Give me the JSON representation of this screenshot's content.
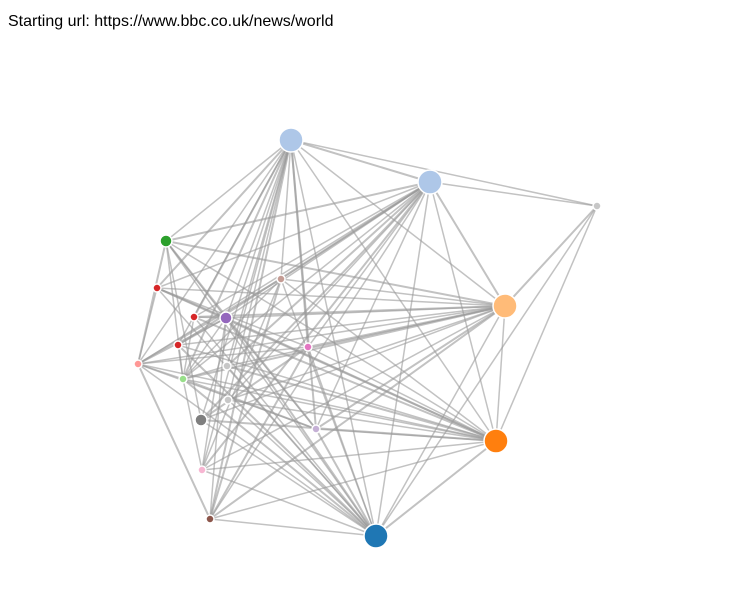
{
  "header": {
    "label": "Starting url:",
    "url": "https://www.bbc.co.uk/news/world"
  },
  "graph": {
    "link_color": "#999999",
    "node_stroke": "#ffffff",
    "nodes": [
      {
        "id": "n0",
        "color": "#aec7e8",
        "size": "large"
      },
      {
        "id": "n1",
        "color": "#aec7e8",
        "size": "large"
      },
      {
        "id": "n2",
        "color": "#c7c7c7",
        "size": "tiny"
      },
      {
        "id": "n3",
        "color": "#2ca02c",
        "size": "small"
      },
      {
        "id": "n4",
        "color": "#d62728",
        "size": "tiny"
      },
      {
        "id": "n5",
        "color": "#c49c94",
        "size": "tiny"
      },
      {
        "id": "n6",
        "color": "#ffbb78",
        "size": "large"
      },
      {
        "id": "n7",
        "color": "#d62728",
        "size": "tiny"
      },
      {
        "id": "n8",
        "color": "#9467bd",
        "size": "small"
      },
      {
        "id": "n9",
        "color": "#d62728",
        "size": "tiny"
      },
      {
        "id": "n10",
        "color": "#e377c2",
        "size": "tiny"
      },
      {
        "id": "n11",
        "color": "#ff9896",
        "size": "tiny"
      },
      {
        "id": "n12",
        "color": "#c7c7c7",
        "size": "tiny"
      },
      {
        "id": "n13",
        "color": "#98df8a",
        "size": "tiny"
      },
      {
        "id": "n14",
        "color": "#c7c7c7",
        "size": "tiny"
      },
      {
        "id": "n15",
        "color": "#7f7f7f",
        "size": "small"
      },
      {
        "id": "n16",
        "color": "#c5b0d5",
        "size": "tiny"
      },
      {
        "id": "n17",
        "color": "#ff7f0e",
        "size": "large"
      },
      {
        "id": "n18",
        "color": "#f7b6d2",
        "size": "tiny"
      },
      {
        "id": "n19",
        "color": "#8c564b",
        "size": "tiny"
      },
      {
        "id": "n20",
        "color": "#1f77b4",
        "size": "large"
      }
    ],
    "links": [
      [
        "n0",
        "n1"
      ],
      [
        "n0",
        "n2"
      ],
      [
        "n0",
        "n3"
      ],
      [
        "n0",
        "n4"
      ],
      [
        "n0",
        "n5"
      ],
      [
        "n0",
        "n6"
      ],
      [
        "n0",
        "n7"
      ],
      [
        "n0",
        "n8"
      ],
      [
        "n0",
        "n9"
      ],
      [
        "n0",
        "n10"
      ],
      [
        "n0",
        "n11"
      ],
      [
        "n0",
        "n12"
      ],
      [
        "n0",
        "n13"
      ],
      [
        "n0",
        "n14"
      ],
      [
        "n0",
        "n15"
      ],
      [
        "n0",
        "n16"
      ],
      [
        "n0",
        "n17"
      ],
      [
        "n0",
        "n18"
      ],
      [
        "n0",
        "n19"
      ],
      [
        "n0",
        "n20"
      ],
      [
        "n1",
        "n2"
      ],
      [
        "n1",
        "n3"
      ],
      [
        "n1",
        "n4"
      ],
      [
        "n1",
        "n5"
      ],
      [
        "n1",
        "n6"
      ],
      [
        "n1",
        "n7"
      ],
      [
        "n1",
        "n8"
      ],
      [
        "n1",
        "n9"
      ],
      [
        "n1",
        "n10"
      ],
      [
        "n1",
        "n11"
      ],
      [
        "n1",
        "n12"
      ],
      [
        "n1",
        "n13"
      ],
      [
        "n1",
        "n14"
      ],
      [
        "n1",
        "n15"
      ],
      [
        "n1",
        "n16"
      ],
      [
        "n1",
        "n17"
      ],
      [
        "n1",
        "n18"
      ],
      [
        "n1",
        "n19"
      ],
      [
        "n1",
        "n20"
      ],
      [
        "n2",
        "n6"
      ],
      [
        "n2",
        "n17"
      ],
      [
        "n2",
        "n20"
      ],
      [
        "n3",
        "n6"
      ],
      [
        "n3",
        "n8"
      ],
      [
        "n3",
        "n13"
      ],
      [
        "n3",
        "n16"
      ],
      [
        "n3",
        "n17"
      ],
      [
        "n3",
        "n20"
      ],
      [
        "n3",
        "n11"
      ],
      [
        "n3",
        "n15"
      ],
      [
        "n4",
        "n6"
      ],
      [
        "n4",
        "n17"
      ],
      [
        "n4",
        "n20"
      ],
      [
        "n4",
        "n11"
      ],
      [
        "n4",
        "n8"
      ],
      [
        "n4",
        "n10"
      ],
      [
        "n5",
        "n6"
      ],
      [
        "n5",
        "n11"
      ],
      [
        "n5",
        "n17"
      ],
      [
        "n5",
        "n18"
      ],
      [
        "n5",
        "n19"
      ],
      [
        "n5",
        "n20"
      ],
      [
        "n5",
        "n13"
      ],
      [
        "n6",
        "n7"
      ],
      [
        "n6",
        "n8"
      ],
      [
        "n6",
        "n9"
      ],
      [
        "n6",
        "n10"
      ],
      [
        "n6",
        "n11"
      ],
      [
        "n6",
        "n12"
      ],
      [
        "n6",
        "n13"
      ],
      [
        "n6",
        "n14"
      ],
      [
        "n6",
        "n15"
      ],
      [
        "n6",
        "n16"
      ],
      [
        "n6",
        "n17"
      ],
      [
        "n6",
        "n18"
      ],
      [
        "n6",
        "n19"
      ],
      [
        "n6",
        "n20"
      ],
      [
        "n7",
        "n8"
      ],
      [
        "n7",
        "n17"
      ],
      [
        "n7",
        "n20"
      ],
      [
        "n7",
        "n13"
      ],
      [
        "n8",
        "n11"
      ],
      [
        "n8",
        "n13"
      ],
      [
        "n8",
        "n16"
      ],
      [
        "n8",
        "n17"
      ],
      [
        "n8",
        "n18"
      ],
      [
        "n8",
        "n19"
      ],
      [
        "n8",
        "n20"
      ],
      [
        "n8",
        "n9"
      ],
      [
        "n9",
        "n17"
      ],
      [
        "n9",
        "n20"
      ],
      [
        "n9",
        "n13"
      ],
      [
        "n10",
        "n11"
      ],
      [
        "n10",
        "n15"
      ],
      [
        "n10",
        "n17"
      ],
      [
        "n10",
        "n20"
      ],
      [
        "n10",
        "n19"
      ],
      [
        "n11",
        "n13"
      ],
      [
        "n11",
        "n17"
      ],
      [
        "n11",
        "n19"
      ],
      [
        "n11",
        "n20"
      ],
      [
        "n11",
        "n16"
      ],
      [
        "n12",
        "n17"
      ],
      [
        "n12",
        "n20"
      ],
      [
        "n12",
        "n13"
      ],
      [
        "n13",
        "n16"
      ],
      [
        "n13",
        "n17"
      ],
      [
        "n13",
        "n18"
      ],
      [
        "n13",
        "n20"
      ],
      [
        "n14",
        "n17"
      ],
      [
        "n14",
        "n20"
      ],
      [
        "n15",
        "n17"
      ],
      [
        "n15",
        "n20"
      ],
      [
        "n16",
        "n17"
      ],
      [
        "n16",
        "n20"
      ],
      [
        "n17",
        "n18"
      ],
      [
        "n17",
        "n19"
      ],
      [
        "n17",
        "n20"
      ],
      [
        "n18",
        "n20"
      ],
      [
        "n19",
        "n20"
      ]
    ]
  }
}
